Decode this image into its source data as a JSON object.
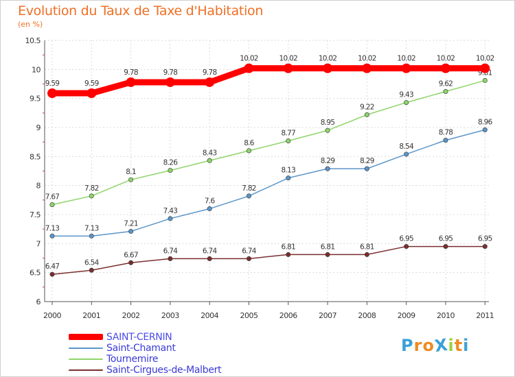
{
  "title": "Evolution du Taux de Taxe d'Habitation",
  "subtitle": "(en %)",
  "logo": {
    "text": "ProXiti",
    "letters": [
      "P",
      "r",
      "o",
      "X",
      "i",
      "t",
      "i"
    ],
    "colors": [
      "#3aa0d8",
      "#f08a24",
      "#f08a24",
      "#3aa0d8",
      "#9bd23c",
      "#f08a24",
      "#3aa0d8"
    ]
  },
  "chart_data": {
    "type": "line",
    "categories": [
      "2000",
      "2001",
      "2002",
      "2003",
      "2004",
      "2005",
      "2006",
      "2007",
      "2008",
      "2009",
      "2010",
      "2011"
    ],
    "ylim": [
      6,
      10.5
    ],
    "yticks": [
      "6",
      "6.5",
      "7",
      "7.5",
      "8",
      "8.5",
      "9",
      "9.5",
      "10",
      "10.5"
    ],
    "grid": true,
    "legend_placement": "bottom-left",
    "series": [
      {
        "name": "SAINT-CERNIN",
        "color": "#ff0000",
        "values": [
          9.59,
          9.59,
          9.78,
          9.78,
          9.78,
          10.02,
          10.02,
          10.02,
          10.02,
          10.02,
          10.02,
          10.02
        ],
        "labels": [
          "9.59",
          "9.59",
          "9.78",
          "9.78",
          "9.78",
          "10.02",
          "10.02",
          "10.02",
          "10.02",
          "10.02",
          "10.02",
          "10.02"
        ]
      },
      {
        "name": "Saint-Chamant",
        "color": "#5b95c9",
        "values": [
          7.13,
          7.13,
          7.21,
          7.43,
          7.6,
          7.82,
          8.13,
          8.29,
          8.29,
          8.54,
          8.78,
          8.96
        ],
        "labels": [
          "7.13",
          "7.13",
          "7.21",
          "7.43",
          "7.6",
          "7.82",
          "8.13",
          "8.29",
          "8.29",
          "8.54",
          "8.78",
          "8.96"
        ]
      },
      {
        "name": "Tournemire",
        "color": "#8ed46a",
        "values": [
          7.67,
          7.82,
          8.1,
          8.26,
          8.43,
          8.6,
          8.77,
          8.95,
          9.22,
          9.43,
          9.62,
          9.81
        ],
        "labels": [
          "7.67",
          "7.82",
          "8.1",
          "8.26",
          "8.43",
          "8.6",
          "8.77",
          "8.95",
          "9.22",
          "9.43",
          "9.62",
          "9.81"
        ]
      },
      {
        "name": "Saint-Cirgues-de-Malbert",
        "color": "#7a2e2e",
        "values": [
          6.47,
          6.54,
          6.67,
          6.74,
          6.74,
          6.74,
          6.81,
          6.81,
          6.81,
          6.95,
          6.95,
          6.95
        ],
        "labels": [
          "6.47",
          "6.54",
          "6.67",
          "6.74",
          "6.74",
          "6.74",
          "6.81",
          "6.81",
          "6.81",
          "6.95",
          "6.95",
          "6.95"
        ]
      }
    ]
  }
}
